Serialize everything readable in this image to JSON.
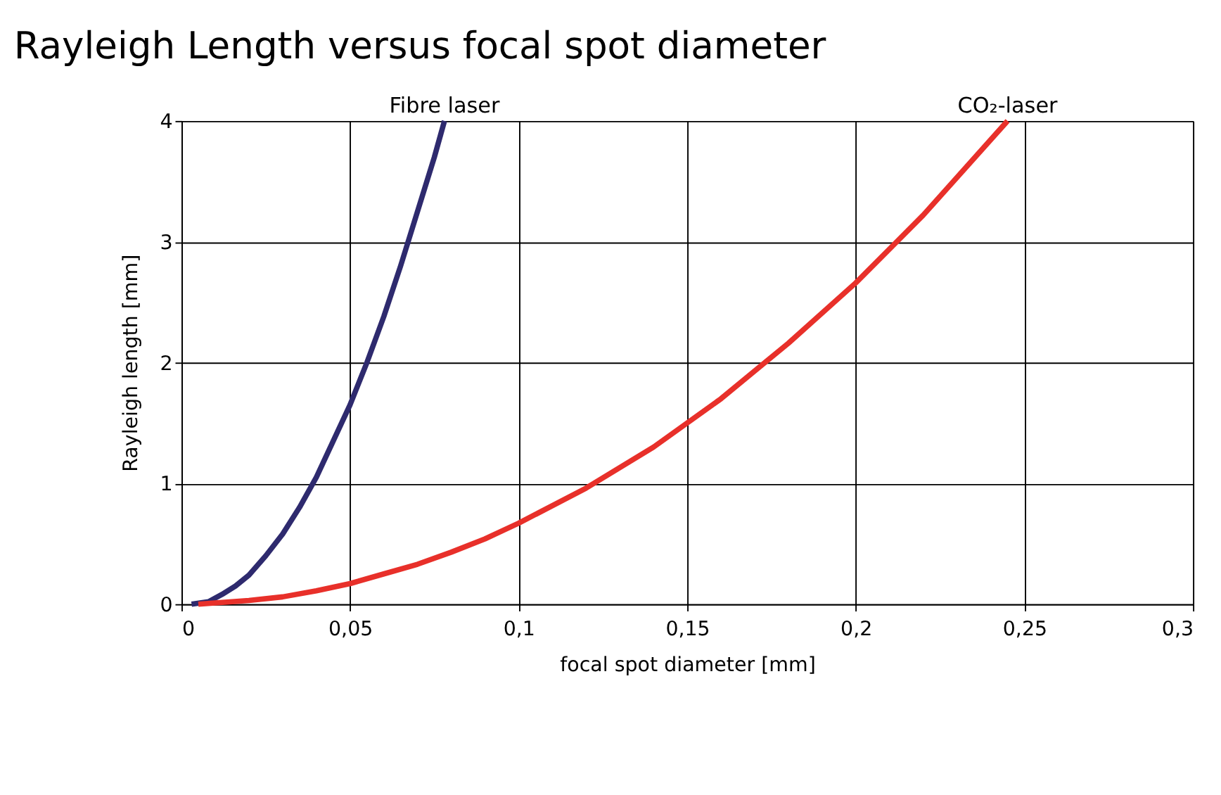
{
  "chart_data": {
    "type": "line",
    "title": "Rayleigh Length versus focal spot diameter",
    "xlabel": "focal spot diameter [mm]",
    "ylabel": "Rayleigh length [mm]",
    "xlim": [
      0,
      0.3
    ],
    "ylim": [
      0,
      4
    ],
    "xticks": [
      0,
      {
        "value": 0.05,
        "label": "0,05"
      },
      {
        "value": 0.1,
        "label": "0,1"
      },
      {
        "value": 0.15,
        "label": "0,15"
      },
      {
        "value": 0.2,
        "label": "0,2"
      },
      {
        "value": 0.25,
        "label": "0,25"
      },
      {
        "value": 0.3,
        "label": "0,3"
      }
    ],
    "yticks": [
      0,
      1,
      2,
      3,
      4
    ],
    "grid": true,
    "marker": "none",
    "line_style": "solid",
    "series": [
      {
        "name": "Fibre laser",
        "color": "#2e2a6e",
        "x": [
          0.003,
          0.008,
          0.012,
          0.016,
          0.02,
          0.025,
          0.03,
          0.035,
          0.04,
          0.045,
          0.05,
          0.055,
          0.06,
          0.065,
          0.07,
          0.075,
          0.078
        ],
        "values": [
          0,
          0.02,
          0.08,
          0.15,
          0.24,
          0.4,
          0.58,
          0.8,
          1.05,
          1.35,
          1.65,
          2.0,
          2.38,
          2.8,
          3.25,
          3.7,
          4.0
        ]
      },
      {
        "name": "CO₂-laser",
        "color": "#e8302a",
        "x": [
          0.005,
          0.01,
          0.02,
          0.03,
          0.04,
          0.05,
          0.06,
          0.07,
          0.08,
          0.09,
          0.1,
          0.12,
          0.14,
          0.16,
          0.18,
          0.2,
          0.22,
          0.245
        ],
        "values": [
          0,
          0.01,
          0.03,
          0.06,
          0.11,
          0.17,
          0.25,
          0.33,
          0.43,
          0.54,
          0.67,
          0.96,
          1.3,
          1.7,
          2.16,
          2.66,
          3.22,
          4.0
        ]
      }
    ]
  }
}
